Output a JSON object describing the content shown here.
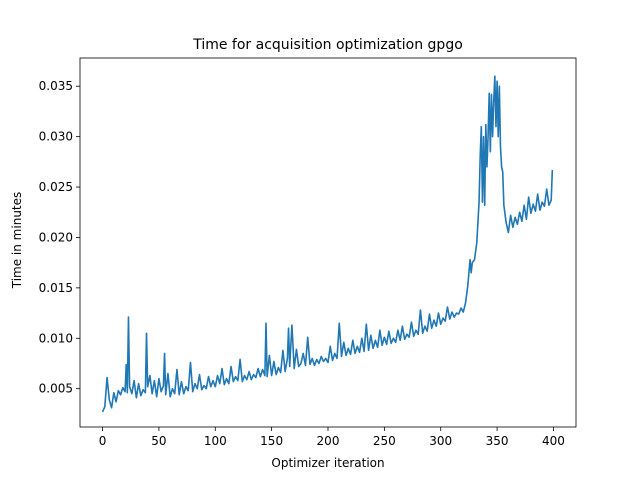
{
  "chart_data": {
    "type": "line",
    "title": "Time for acquisition optimization gpgo",
    "xlabel": "Optimizer iteration",
    "ylabel": "Time in minutes",
    "xlim": [
      -20,
      420
    ],
    "ylim": [
      0.0012,
      0.0378
    ],
    "xticks": [
      0,
      50,
      100,
      150,
      200,
      250,
      300,
      350,
      400
    ],
    "yticks": [
      0.005,
      0.01,
      0.015,
      0.02,
      0.025,
      0.03,
      0.035
    ],
    "ytick_labels": [
      "0.005",
      "0.010",
      "0.015",
      "0.020",
      "0.025",
      "0.030",
      "0.035"
    ],
    "grid": false,
    "line_color": "#1f77b4",
    "series": [
      {
        "points": [
          [
            0,
            0.0027
          ],
          [
            2,
            0.0032
          ],
          [
            4,
            0.0061
          ],
          [
            6,
            0.0039
          ],
          [
            8,
            0.0031
          ],
          [
            10,
            0.0046
          ],
          [
            12,
            0.0037
          ],
          [
            14,
            0.0048
          ],
          [
            16,
            0.0044
          ],
          [
            18,
            0.0051
          ],
          [
            20,
            0.0047
          ],
          [
            21,
            0.0074
          ],
          [
            22,
            0.0046
          ],
          [
            23,
            0.0121
          ],
          [
            24,
            0.0052
          ],
          [
            26,
            0.0045
          ],
          [
            28,
            0.0058
          ],
          [
            30,
            0.0041
          ],
          [
            32,
            0.0055
          ],
          [
            34,
            0.0043
          ],
          [
            36,
            0.0049
          ],
          [
            38,
            0.0046
          ],
          [
            39,
            0.0105
          ],
          [
            40,
            0.0052
          ],
          [
            42,
            0.0063
          ],
          [
            44,
            0.0045
          ],
          [
            46,
            0.0058
          ],
          [
            48,
            0.0042
          ],
          [
            50,
            0.006
          ],
          [
            52,
            0.0047
          ],
          [
            54,
            0.0053
          ],
          [
            55,
            0.0085
          ],
          [
            56,
            0.0044
          ],
          [
            58,
            0.0065
          ],
          [
            60,
            0.0042
          ],
          [
            62,
            0.005
          ],
          [
            64,
            0.0045
          ],
          [
            66,
            0.0069
          ],
          [
            68,
            0.0044
          ],
          [
            70,
            0.0057
          ],
          [
            72,
            0.0045
          ],
          [
            74,
            0.0052
          ],
          [
            76,
            0.0048
          ],
          [
            78,
            0.0076
          ],
          [
            80,
            0.0047
          ],
          [
            82,
            0.0055
          ],
          [
            84,
            0.005
          ],
          [
            86,
            0.0064
          ],
          [
            88,
            0.0049
          ],
          [
            90,
            0.0053
          ],
          [
            92,
            0.005
          ],
          [
            94,
            0.0062
          ],
          [
            96,
            0.0052
          ],
          [
            98,
            0.0058
          ],
          [
            100,
            0.0052
          ],
          [
            102,
            0.0063
          ],
          [
            104,
            0.0055
          ],
          [
            106,
            0.007
          ],
          [
            108,
            0.0054
          ],
          [
            110,
            0.006
          ],
          [
            112,
            0.0055
          ],
          [
            114,
            0.0072
          ],
          [
            116,
            0.0057
          ],
          [
            118,
            0.0062
          ],
          [
            120,
            0.0058
          ],
          [
            122,
            0.0079
          ],
          [
            124,
            0.0057
          ],
          [
            126,
            0.0063
          ],
          [
            128,
            0.0059
          ],
          [
            130,
            0.0067
          ],
          [
            132,
            0.0059
          ],
          [
            134,
            0.0064
          ],
          [
            136,
            0.0061
          ],
          [
            138,
            0.007
          ],
          [
            140,
            0.0062
          ],
          [
            142,
            0.0069
          ],
          [
            144,
            0.0063
          ],
          [
            145,
            0.0115
          ],
          [
            146,
            0.0062
          ],
          [
            148,
            0.0083
          ],
          [
            150,
            0.0063
          ],
          [
            152,
            0.0077
          ],
          [
            154,
            0.0064
          ],
          [
            156,
            0.0071
          ],
          [
            158,
            0.0066
          ],
          [
            160,
            0.0088
          ],
          [
            162,
            0.0067
          ],
          [
            164,
            0.008
          ],
          [
            165,
            0.011
          ],
          [
            166,
            0.0072
          ],
          [
            168,
            0.0113
          ],
          [
            170,
            0.007
          ],
          [
            172,
            0.0089
          ],
          [
            174,
            0.0072
          ],
          [
            176,
            0.0075
          ],
          [
            178,
            0.0085
          ],
          [
            180,
            0.0073
          ],
          [
            182,
            0.0101
          ],
          [
            184,
            0.0074
          ],
          [
            186,
            0.008
          ],
          [
            188,
            0.0073
          ],
          [
            190,
            0.0079
          ],
          [
            192,
            0.0075
          ],
          [
            194,
            0.0082
          ],
          [
            196,
            0.0077
          ],
          [
            198,
            0.008
          ],
          [
            200,
            0.0076
          ],
          [
            202,
            0.0092
          ],
          [
            204,
            0.0078
          ],
          [
            206,
            0.0085
          ],
          [
            208,
            0.008
          ],
          [
            210,
            0.0115
          ],
          [
            212,
            0.0082
          ],
          [
            214,
            0.0096
          ],
          [
            216,
            0.0083
          ],
          [
            218,
            0.009
          ],
          [
            220,
            0.0084
          ],
          [
            222,
            0.0098
          ],
          [
            224,
            0.0085
          ],
          [
            226,
            0.0092
          ],
          [
            228,
            0.0086
          ],
          [
            230,
            0.01
          ],
          [
            232,
            0.0087
          ],
          [
            234,
            0.0114
          ],
          [
            236,
            0.0088
          ],
          [
            238,
            0.0103
          ],
          [
            240,
            0.009
          ],
          [
            242,
            0.0098
          ],
          [
            244,
            0.0091
          ],
          [
            246,
            0.0108
          ],
          [
            248,
            0.0093
          ],
          [
            250,
            0.0101
          ],
          [
            252,
            0.0094
          ],
          [
            254,
            0.0107
          ],
          [
            256,
            0.0095
          ],
          [
            258,
            0.01
          ],
          [
            260,
            0.0096
          ],
          [
            262,
            0.0108
          ],
          [
            264,
            0.0098
          ],
          [
            266,
            0.0112
          ],
          [
            268,
            0.0099
          ],
          [
            270,
            0.0104
          ],
          [
            272,
            0.0101
          ],
          [
            274,
            0.0116
          ],
          [
            276,
            0.0102
          ],
          [
            278,
            0.0108
          ],
          [
            280,
            0.0104
          ],
          [
            282,
            0.0128
          ],
          [
            284,
            0.0105
          ],
          [
            286,
            0.0112
          ],
          [
            288,
            0.0107
          ],
          [
            290,
            0.0124
          ],
          [
            292,
            0.011
          ],
          [
            294,
            0.0118
          ],
          [
            296,
            0.0112
          ],
          [
            298,
            0.0125
          ],
          [
            300,
            0.0114
          ],
          [
            302,
            0.012
          ],
          [
            304,
            0.0117
          ],
          [
            306,
            0.0131
          ],
          [
            308,
            0.0119
          ],
          [
            310,
            0.0126
          ],
          [
            312,
            0.0121
          ],
          [
            314,
            0.0125
          ],
          [
            316,
            0.0124
          ],
          [
            318,
            0.013
          ],
          [
            320,
            0.0126
          ],
          [
            322,
            0.0135
          ],
          [
            324,
            0.0152
          ],
          [
            326,
            0.0178
          ],
          [
            327,
            0.0165
          ],
          [
            328,
            0.0175
          ],
          [
            330,
            0.0178
          ],
          [
            332,
            0.0195
          ],
          [
            334,
            0.0235
          ],
          [
            335,
            0.028
          ],
          [
            336,
            0.031
          ],
          [
            337,
            0.0235
          ],
          [
            338,
            0.03
          ],
          [
            339,
            0.0232
          ],
          [
            340,
            0.0312
          ],
          [
            341,
            0.027
          ],
          [
            342,
            0.03
          ],
          [
            343,
            0.0343
          ],
          [
            344,
            0.0285
          ],
          [
            345,
            0.0342
          ],
          [
            346,
            0.03
          ],
          [
            347,
            0.0335
          ],
          [
            348,
            0.036
          ],
          [
            349,
            0.031
          ],
          [
            350,
            0.0355
          ],
          [
            351,
            0.03
          ],
          [
            352,
            0.035
          ],
          [
            353,
            0.029
          ],
          [
            354,
            0.027
          ],
          [
            355,
            0.0265
          ],
          [
            356,
            0.0232
          ],
          [
            358,
            0.0215
          ],
          [
            360,
            0.0205
          ],
          [
            362,
            0.0222
          ],
          [
            364,
            0.021
          ],
          [
            366,
            0.022
          ],
          [
            368,
            0.0213
          ],
          [
            370,
            0.0225
          ],
          [
            372,
            0.0216
          ],
          [
            374,
            0.0232
          ],
          [
            376,
            0.0218
          ],
          [
            378,
            0.024
          ],
          [
            380,
            0.0224
          ],
          [
            382,
            0.0233
          ],
          [
            384,
            0.0226
          ],
          [
            386,
            0.0243
          ],
          [
            388,
            0.0227
          ],
          [
            390,
            0.0235
          ],
          [
            392,
            0.0231
          ],
          [
            394,
            0.0248
          ],
          [
            396,
            0.0232
          ],
          [
            398,
            0.0237
          ],
          [
            399,
            0.0267
          ]
        ]
      }
    ]
  }
}
